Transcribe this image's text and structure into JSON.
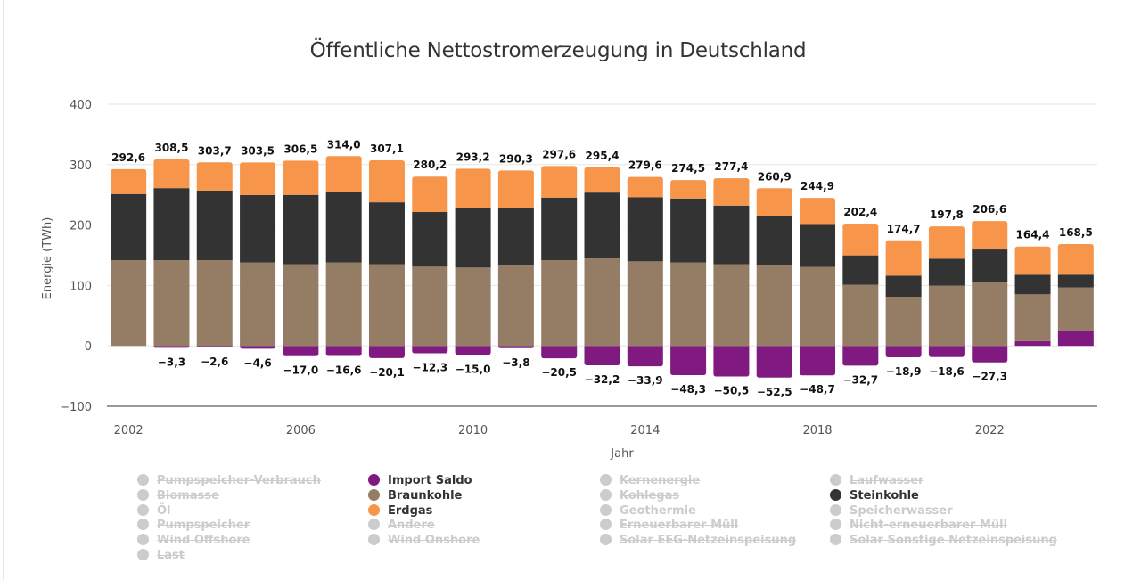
{
  "chart_data": {
    "type": "bar",
    "stacked": true,
    "title": "Öffentliche Nettostromerzeugung in Deutschland",
    "xlabel": "Jahr",
    "ylabel": "Energie (TWh)",
    "ylim": [
      -100,
      400
    ],
    "yticks": [
      "400",
      "300",
      "200",
      "100",
      "0",
      "−100"
    ],
    "ytick_values": [
      400,
      300,
      200,
      100,
      0,
      -100
    ],
    "xticks": [
      "2002",
      "2006",
      "2010",
      "2014",
      "2018",
      "2022"
    ],
    "grid": true,
    "legend_position": "bottom",
    "categories": [
      "2002",
      "2003",
      "2004",
      "2005",
      "2006",
      "2007",
      "2008",
      "2009",
      "2010",
      "2011",
      "2012",
      "2013",
      "2014",
      "2015",
      "2016",
      "2017",
      "2018",
      "2019",
      "2020",
      "2021",
      "2022",
      "2023",
      "2024"
    ],
    "series": [
      {
        "name": "Import Saldo",
        "color": "#801a80",
        "values": [
          0.0,
          -3.3,
          -2.6,
          -4.6,
          -17.0,
          -16.6,
          -20.1,
          -12.3,
          -15.0,
          -3.8,
          -20.5,
          -32.2,
          -33.9,
          -48.3,
          -50.5,
          -52.5,
          -48.7,
          -32.7,
          -18.9,
          -18.6,
          -27.3,
          7.8,
          24.0
        ]
      },
      {
        "name": "Braunkohle",
        "color": "#957d65",
        "values": [
          141.8,
          141.8,
          141.8,
          137.9,
          135.0,
          138.0,
          135.0,
          131.1,
          129.6,
          133.0,
          141.8,
          144.8,
          139.9,
          138.0,
          135.0,
          133.0,
          130.6,
          101.2,
          81.4,
          99.7,
          105.0,
          77.6,
          72.8
        ]
      },
      {
        "name": "Steinkohle",
        "color": "#333333",
        "values": [
          109.6,
          119.3,
          115.4,
          111.9,
          114.9,
          117.3,
          102.6,
          90.4,
          98.7,
          95.3,
          103.7,
          109.0,
          106.0,
          106.0,
          97.2,
          81.6,
          71.1,
          48.6,
          34.9,
          44.6,
          54.5,
          32.4,
          21.1
        ]
      },
      {
        "name": "Erdgas",
        "color": "#f7964a",
        "values": [
          41.2,
          47.4,
          46.5,
          53.7,
          56.6,
          58.7,
          69.5,
          58.7,
          64.9,
          62.0,
          52.1,
          41.6,
          33.7,
          30.5,
          45.2,
          46.3,
          43.2,
          52.6,
          58.4,
          53.5,
          47.1,
          46.6,
          50.6
        ]
      }
    ],
    "total_labels": [
      "292,6",
      "308,5",
      "303,7",
      "303,5",
      "306,5",
      "314,0",
      "307,1",
      "280,2",
      "293,2",
      "290,3",
      "297,6",
      "295,4",
      "279,6",
      "274,5",
      "277,4",
      "260,9",
      "244,9",
      "202,4",
      "174,7",
      "197,8",
      "206,6",
      "164,4",
      "168,5"
    ],
    "totals": [
      292.6,
      308.5,
      303.7,
      303.5,
      306.5,
      314.0,
      307.1,
      280.2,
      293.2,
      290.3,
      297.6,
      295.4,
      279.6,
      274.5,
      277.4,
      260.9,
      244.9,
      202.4,
      174.7,
      197.8,
      206.6,
      164.4,
      168.5
    ],
    "negative_labels": [
      "",
      "−3,3",
      "−2,6",
      "−4,6",
      "−17,0",
      "−16,6",
      "−20,1",
      "−12,3",
      "−15,0",
      "−3,8",
      "−20,5",
      "−32,2",
      "−33,9",
      "−48,3",
      "−50,5",
      "−52,5",
      "−48,7",
      "−32,7",
      "−18,9",
      "−18,6",
      "−27,3",
      "",
      ""
    ],
    "negative_totals": [
      0,
      -3.3,
      -2.6,
      -4.6,
      -17.0,
      -16.6,
      -20.1,
      -12.3,
      -15.0,
      -3.8,
      -20.5,
      -32.2,
      -33.9,
      -48.3,
      -50.5,
      -52.5,
      -48.7,
      -32.7,
      -18.9,
      -18.6,
      -27.3,
      0,
      0
    ]
  },
  "legend": {
    "columns": [
      [
        {
          "label": "Pumpspeicher-Verbrauch",
          "visible": false,
          "color": "#cccccc"
        },
        {
          "label": "Biomasse",
          "visible": false,
          "color": "#cccccc"
        },
        {
          "label": "Öl",
          "visible": false,
          "color": "#cccccc"
        },
        {
          "label": "Pumpspeicher",
          "visible": false,
          "color": "#cccccc"
        },
        {
          "label": "Wind Offshore",
          "visible": false,
          "color": "#cccccc"
        },
        {
          "label": "Last",
          "visible": false,
          "color": "#cccccc"
        }
      ],
      [
        {
          "label": "Import Saldo",
          "visible": true,
          "color": "#801a80"
        },
        {
          "label": "Braunkohle",
          "visible": true,
          "color": "#957d65"
        },
        {
          "label": "Erdgas",
          "visible": true,
          "color": "#f7964a"
        },
        {
          "label": "Andere",
          "visible": false,
          "color": "#cccccc"
        },
        {
          "label": "Wind Onshore",
          "visible": false,
          "color": "#cccccc"
        }
      ],
      [
        {
          "label": "Kernenergie",
          "visible": false,
          "color": "#cccccc"
        },
        {
          "label": "Kohlegas",
          "visible": false,
          "color": "#cccccc"
        },
        {
          "label": "Geothermie",
          "visible": false,
          "color": "#cccccc"
        },
        {
          "label": "Erneuerbarer Müll",
          "visible": false,
          "color": "#cccccc"
        },
        {
          "label": "Solar EEG-Netzeinspeisung",
          "visible": false,
          "color": "#cccccc"
        }
      ],
      [
        {
          "label": "Laufwasser",
          "visible": false,
          "color": "#cccccc"
        },
        {
          "label": "Steinkohle",
          "visible": true,
          "color": "#333333"
        },
        {
          "label": "Speicherwasser",
          "visible": false,
          "color": "#cccccc"
        },
        {
          "label": "Nicht-erneuerbarer Müll",
          "visible": false,
          "color": "#cccccc"
        },
        {
          "label": "Solar Sonstige Netzeinspeisung",
          "visible": false,
          "color": "#cccccc"
        }
      ]
    ]
  }
}
